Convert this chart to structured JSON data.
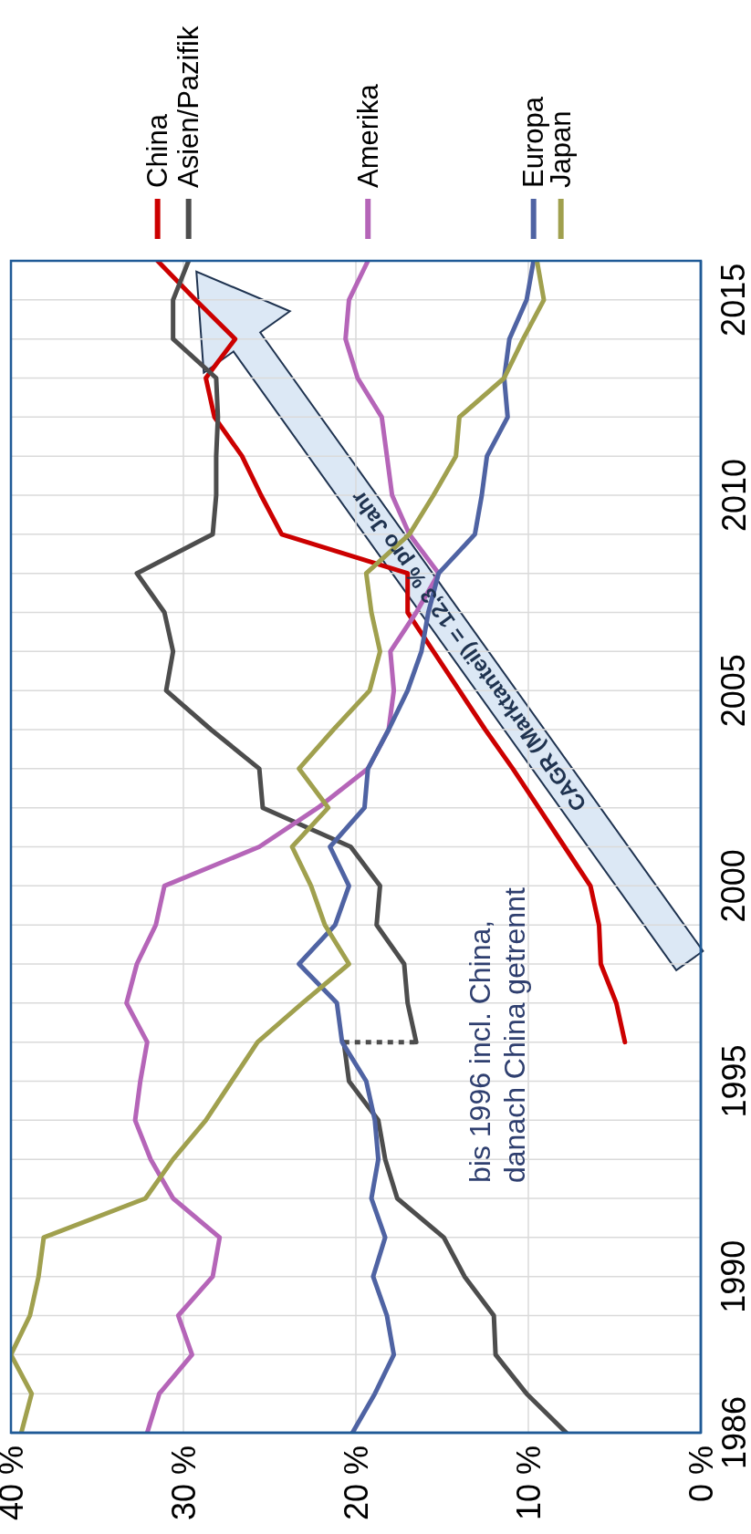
{
  "chart_data": {
    "type": "line",
    "orientation": "horizontal",
    "x": [
      1986,
      1987,
      1988,
      1989,
      1990,
      1991,
      1992,
      1993,
      1994,
      1995,
      1996,
      1997,
      1998,
      1999,
      2000,
      2001,
      2002,
      2003,
      2004,
      2005,
      2006,
      2007,
      2008,
      2009,
      2010,
      2011,
      2012,
      2013,
      2014,
      2015,
      2016
    ],
    "series": [
      {
        "name": "China",
        "color": "#cc0000",
        "x": [
          1996,
          1997,
          1998,
          1999,
          2000,
          2001,
          2002,
          2003,
          2004,
          2005,
          2006,
          2007,
          2008,
          2009,
          2010,
          2011,
          2012,
          2013,
          2014,
          2015,
          2016
        ],
        "values": [
          4.4,
          4.9,
          5.8,
          5.9,
          6.4,
          7.9,
          9.4,
          10.9,
          12.5,
          14.0,
          15.5,
          17.0,
          17.0,
          24.3,
          25.5,
          26.6,
          28.2,
          28.7,
          27.0,
          29.3,
          31.5
        ]
      },
      {
        "color": "#4d4d4d",
        "x": [
          1986,
          1987,
          1988,
          1989,
          1990,
          1991,
          1992,
          1993,
          1994,
          1995,
          1996
        ],
        "values": [
          7.8,
          10.1,
          11.9,
          12.0,
          13.7,
          14.9,
          17.6,
          18.3,
          18.7,
          20.4,
          20.7
        ]
      },
      {
        "color": "#4d4d4d",
        "x": [
          1996,
          1996
        ],
        "values": [
          20.7,
          16.5
        ],
        "line_style": "dotted"
      },
      {
        "name": "Asien/Pazifik",
        "color": "#4d4d4d",
        "x": [
          1996,
          1997,
          1998,
          1999,
          2000,
          2001,
          2002,
          2003,
          2004,
          2005,
          2006,
          2007,
          2008,
          2009,
          2010,
          2011,
          2012,
          2013,
          2014,
          2015,
          2016
        ],
        "values": [
          16.5,
          17.0,
          17.2,
          18.8,
          18.6,
          20.3,
          25.4,
          25.6,
          28.4,
          31.0,
          30.6,
          31.1,
          32.7,
          28.3,
          28.1,
          28.1,
          28.0,
          28.1,
          30.6,
          30.6,
          29.7
        ]
      },
      {
        "name": "Amerika",
        "color": "#b565b8",
        "values": [
          32.1,
          31.4,
          29.5,
          30.3,
          28.3,
          27.9,
          30.6,
          31.9,
          32.8,
          32.5,
          32.1,
          33.3,
          32.7,
          31.6,
          31.1,
          25.6,
          22.2,
          19.3,
          18.1,
          17.8,
          18.0,
          16.5,
          15.2,
          16.9,
          17.9,
          18.2,
          18.5,
          19.9,
          20.6,
          20.4,
          19.3
        ]
      },
      {
        "name": "Europa",
        "color": "#4f63a3",
        "values": [
          20.2,
          18.9,
          17.8,
          18.2,
          19.0,
          18.3,
          19.1,
          18.7,
          18.9,
          19.4,
          20.8,
          21.1,
          23.3,
          21.2,
          20.4,
          21.5,
          19.5,
          19.3,
          18.1,
          17.0,
          16.2,
          15.8,
          15.2,
          13.1,
          12.7,
          12.4,
          11.2,
          11.4,
          11.1,
          10.1,
          9.7
        ]
      },
      {
        "name": "Japan",
        "color": "#a0a04e",
        "values": [
          39.4,
          38.8,
          40.0,
          38.9,
          38.4,
          38.1,
          32.2,
          30.6,
          28.7,
          27.2,
          25.7,
          23.1,
          20.4,
          21.8,
          22.6,
          23.7,
          21.6,
          23.3,
          21.3,
          19.2,
          18.6,
          19.1,
          19.4,
          16.9,
          15.5,
          14.2,
          14.0,
          11.4,
          10.3,
          9.1,
          9.5
        ]
      }
    ],
    "xlim": [
      40,
      0
    ],
    "xticks": [
      {
        "value": 40,
        "label": "40 %"
      },
      {
        "value": 30,
        "label": "30 %"
      },
      {
        "value": 20,
        "label": "20 %"
      },
      {
        "value": 10,
        "label": "10 %"
      },
      {
        "value": 0,
        "label": "0 %"
      }
    ],
    "ylim": [
      1986,
      2016
    ],
    "yticks": [
      1986,
      {
        "value": 1987,
        "label": null
      },
      {
        "value": 1988,
        "label": null
      },
      {
        "value": 1989,
        "label": null
      },
      1990,
      {
        "value": 1991,
        "label": null
      },
      {
        "value": 1992,
        "label": null
      },
      {
        "value": 1993,
        "label": null
      },
      {
        "value": 1994,
        "label": null
      },
      1995,
      {
        "value": 1996,
        "label": null
      },
      {
        "value": 1997,
        "label": null
      },
      {
        "value": 1998,
        "label": null
      },
      {
        "value": 1999,
        "label": null
      },
      2000,
      {
        "value": 2001,
        "label": null
      },
      {
        "value": 2002,
        "label": null
      },
      {
        "value": 2003,
        "label": null
      },
      {
        "value": 2004,
        "label": null
      },
      2005,
      {
        "value": 2006,
        "label": null
      },
      {
        "value": 2007,
        "label": null
      },
      {
        "value": 2008,
        "label": null
      },
      {
        "value": 2009,
        "label": null
      },
      2010,
      {
        "value": 2011,
        "label": null
      },
      {
        "value": 2012,
        "label": null
      },
      {
        "value": 2013,
        "label": null
      },
      {
        "value": 2014,
        "label": null
      },
      2015,
      {
        "value": 2016,
        "label": null
      }
    ],
    "grid": true,
    "legend": "top",
    "line_style": "solid",
    "annotations": [
      "CAGR (Marktanteil) = 12,3 % pro Jahr",
      "bis 1996 incl. China, danach China getrennt"
    ]
  }
}
